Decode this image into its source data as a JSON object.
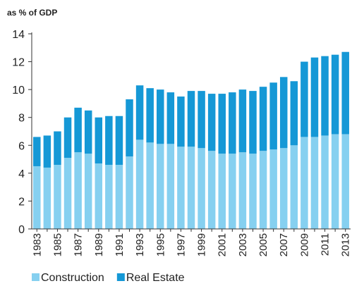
{
  "chart_data": {
    "type": "stacked_bar",
    "y_axis_label": "as % of GDP",
    "categories": [
      "1983",
      null,
      "1985",
      null,
      "1987",
      null,
      "1989",
      null,
      "1991",
      null,
      "1993",
      null,
      "1995",
      null,
      "1997",
      null,
      "1999",
      null,
      "2001",
      null,
      "2003",
      null,
      "2005",
      null,
      "2007",
      null,
      "2009",
      null,
      "2011",
      null,
      "2013"
    ],
    "series": [
      {
        "name": "Construction",
        "color": "#86d0f0",
        "values": [
          4.5,
          4.4,
          4.6,
          5.1,
          5.5,
          5.4,
          4.7,
          4.6,
          4.6,
          5.2,
          6.4,
          6.2,
          6.1,
          6.1,
          5.9,
          5.9,
          5.8,
          5.6,
          5.4,
          5.4,
          5.5,
          5.4,
          5.6,
          5.7,
          5.8,
          6.0,
          6.6,
          6.6,
          6.7,
          6.8,
          6.8
        ]
      },
      {
        "name": "Real Estate",
        "color": "#1598d6",
        "values": [
          2.1,
          2.3,
          2.4,
          2.9,
          3.2,
          3.1,
          3.3,
          3.5,
          3.5,
          4.1,
          3.9,
          3.9,
          3.9,
          3.7,
          3.6,
          4.0,
          4.1,
          4.1,
          4.3,
          4.4,
          4.5,
          4.5,
          4.6,
          4.8,
          5.1,
          4.6,
          5.4,
          5.7,
          5.7,
          5.7,
          5.9
        ]
      }
    ],
    "ylim": [
      0,
      14
    ],
    "yticks": [
      0,
      2,
      4,
      6,
      8,
      10,
      12,
      14
    ],
    "legend": "bottom"
  }
}
